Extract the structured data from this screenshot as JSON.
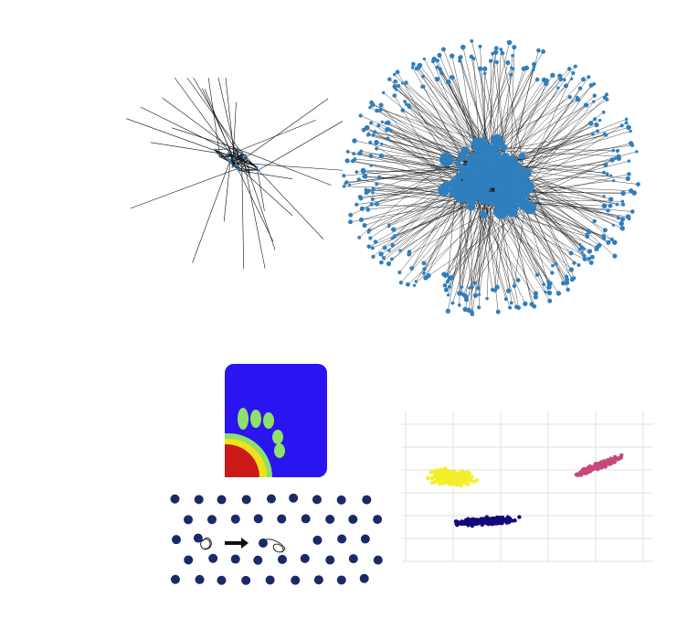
{
  "colors": {
    "background": "#ffffff",
    "network_node": "#2f7fbf",
    "network_edge": "#111111",
    "fingering_background": "#2a14f2",
    "fingering_core": "#cc1a1a",
    "fingering_rim": "#f2e21a",
    "fingering_fringe": "#8ee06a",
    "particle": "#1a2a66",
    "cluster_yellow": "#f2ef2a",
    "cluster_navy": "#120a7a",
    "cluster_magenta": "#c8487a",
    "grid": "#d9d9d9"
  },
  "panels": [
    {
      "name": "small-network-graph",
      "kind": "network",
      "density": "sparse"
    },
    {
      "name": "large-network-graph",
      "kind": "network",
      "density": "dense"
    },
    {
      "name": "viscous-fingering-image",
      "kind": "simulation-image"
    },
    {
      "name": "particle-lattice-diagram",
      "kind": "schematic",
      "arrow": "right"
    },
    {
      "name": "cluster-scatter-plot",
      "kind": "scatter",
      "clusters": 3
    }
  ]
}
